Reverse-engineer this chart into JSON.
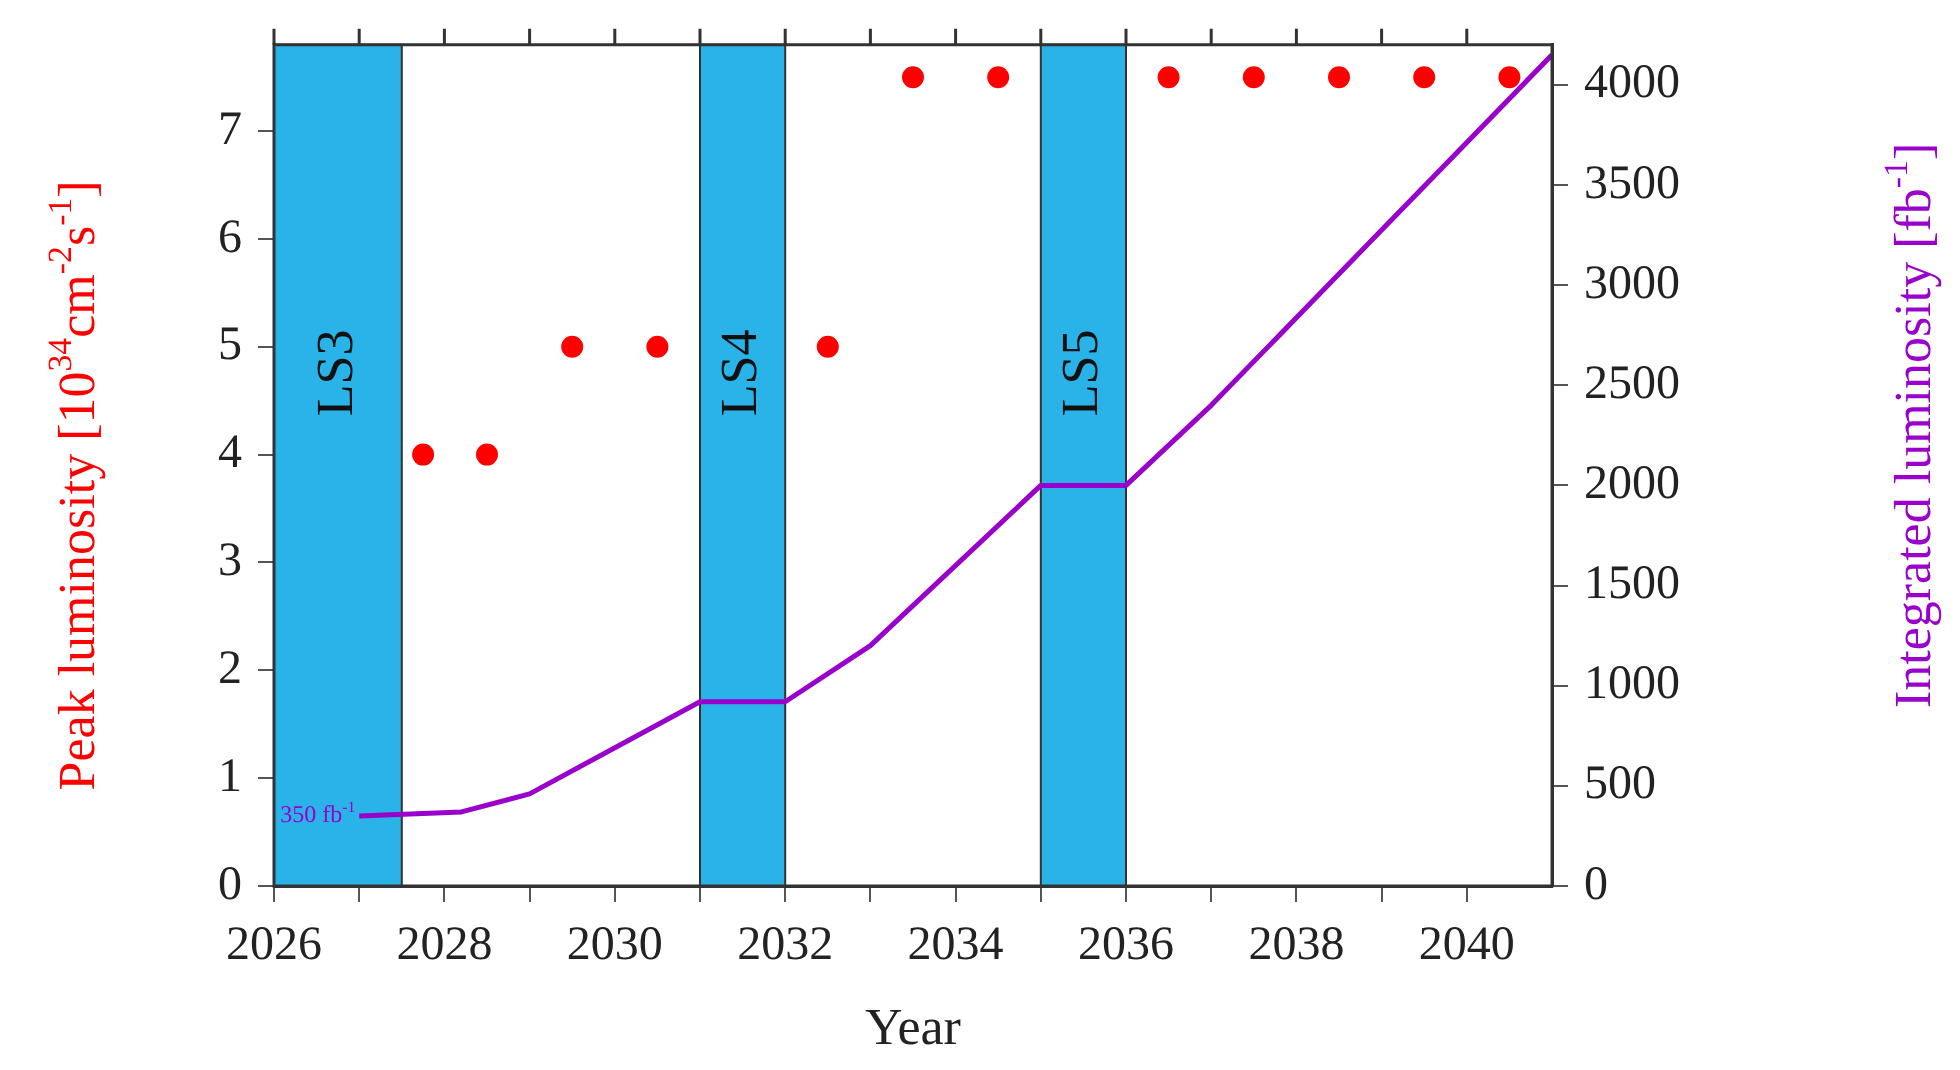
{
  "chart_data": {
    "type": "scatter",
    "xlabel": "Year",
    "ylabel": "Peak luminosity [10$^{34}$cm$^{-2}$s$^{-1}$]",
    "y2label": "Integrated luminosity [fb$^{-1}$]",
    "xlim": [
      2026,
      2041
    ],
    "xticks": [
      2026,
      {
        "value": 2027,
        "label": null
      },
      2028,
      {
        "value": 2029,
        "label": null
      },
      2030,
      {
        "value": 2031,
        "label": null
      },
      2032,
      {
        "value": 2033,
        "label": null
      },
      2034,
      {
        "value": 2035,
        "label": null
      },
      2036,
      {
        "value": 2037,
        "label": null
      },
      2038,
      {
        "value": 2039,
        "label": null
      },
      2040
    ],
    "ylim": [
      0,
      7.8
    ],
    "yticks": [
      0,
      1,
      2,
      3,
      4,
      5,
      6,
      7
    ],
    "y2lim": [
      0,
      4200
    ],
    "y2ticks": [
      0,
      500,
      1000,
      1500,
      2000,
      2500,
      3000,
      3500,
      4000
    ],
    "series": [
      {
        "color": "#ff0000",
        "marker": "circle",
        "x": [
          2027.75,
          2028.5,
          2029.5,
          2030.5,
          2032.5,
          2033.5,
          2034.5,
          2036.5,
          2037.5,
          2038.5,
          2039.5,
          2040.5
        ],
        "values": [
          4,
          4,
          5,
          5,
          5,
          7.5,
          7.5,
          7.5,
          7.5,
          7.5,
          7.5,
          7.5
        ]
      },
      {
        "type": "line",
        "axis": "y2",
        "color": "#9900cc",
        "marker": "none",
        "line_style": "solid",
        "x": [
          2027,
          2028.2,
          2029,
          2031,
          2032,
          2033,
          2035,
          2036,
          2037,
          2041
        ],
        "values": [
          350,
          370,
          460,
          920,
          920,
          1200,
          2000,
          2000,
          2400,
          4150
        ]
      }
    ],
    "bands": [
      {
        "axis": "x",
        "from": 2026,
        "to": 2027.5,
        "label": "LS3",
        "color": "#29b3e8"
      },
      {
        "axis": "x",
        "from": 2031,
        "to": 2032,
        "label": "LS4",
        "color": "#29b3e8"
      },
      {
        "axis": "x",
        "from": 2035,
        "to": 2036,
        "label": "LS5",
        "color": "#29b3e8"
      }
    ],
    "annotations": [
      "350 fb$^{-1}$"
    ],
    "grid": false,
    "legend": false
  }
}
